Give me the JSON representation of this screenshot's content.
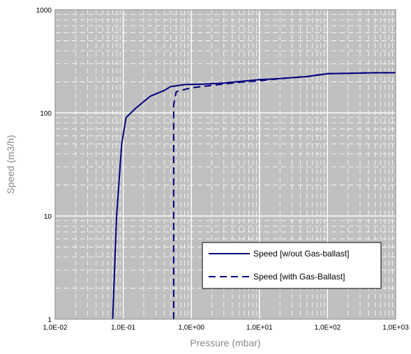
{
  "chart_data": {
    "type": "line",
    "title": "",
    "xlabel": "Pressure (mbar)",
    "ylabel": "Speed (m3/h)",
    "x_scale": "log",
    "y_scale": "log",
    "xlim": [
      0.01,
      1000
    ],
    "ylim": [
      1,
      1000
    ],
    "x_tick_labels": [
      "1,0E-02",
      "1,0E-01",
      "1,0E+00",
      "1,0E+01",
      "1,0E+02",
      "1,0E+03"
    ],
    "y_tick_labels": [
      "1",
      "10",
      "100",
      "1000"
    ],
    "grid": true,
    "legend_position": "bottom-right",
    "colors": {
      "plot_bg": "#c0c0c0",
      "line": "#000080",
      "grid": "#ffffff"
    },
    "series": [
      {
        "name": "Speed [w/out Gas-ballast]",
        "style": "solid",
        "x": [
          0.07,
          0.08,
          0.095,
          0.11,
          0.15,
          0.25,
          0.4,
          0.5,
          0.8,
          1.5,
          3,
          10,
          20,
          50,
          100,
          200,
          500,
          1000
        ],
        "y": [
          1,
          10,
          50,
          90,
          110,
          145,
          165,
          180,
          188,
          190,
          195,
          210,
          215,
          225,
          240,
          242,
          245,
          245
        ]
      },
      {
        "name": "Speed [with Gas-Ballast]",
        "style": "dashed",
        "x": [
          0.55,
          0.55,
          0.6,
          0.7,
          1,
          2,
          5,
          10,
          20,
          50,
          100,
          200,
          500,
          1000
        ],
        "y": [
          1,
          120,
          160,
          165,
          175,
          185,
          198,
          205,
          215,
          225,
          240,
          242,
          245,
          245
        ]
      }
    ]
  }
}
